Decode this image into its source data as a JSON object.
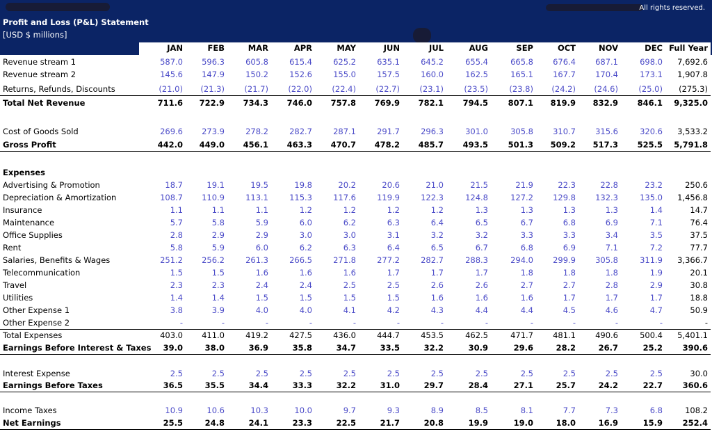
{
  "banner": {
    "copyright": "All rights reserved.",
    "title": "Profit and Loss (P&L) Statement",
    "subtitle": "[USD $ millions]"
  },
  "columns": [
    "JAN",
    "FEB",
    "MAR",
    "APR",
    "MAY",
    "JUN",
    "JUL",
    "AUG",
    "SEP",
    "OCT",
    "NOV",
    "DEC",
    "Full Year"
  ],
  "rows": [
    {
      "label": "Revenue stream 1",
      "values": [
        "587.0",
        "596.3",
        "605.8",
        "615.4",
        "625.2",
        "635.1",
        "645.2",
        "655.4",
        "665.8",
        "676.4",
        "687.1",
        "698.0"
      ],
      "total": "7,692.6"
    },
    {
      "label": "Revenue stream 2",
      "values": [
        "145.6",
        "147.9",
        "150.2",
        "152.6",
        "155.0",
        "157.5",
        "160.0",
        "162.5",
        "165.1",
        "167.7",
        "170.4",
        "173.1"
      ],
      "total": "1,907.8"
    },
    {
      "label": "Returns, Refunds, Discounts",
      "values": [
        "(21.0)",
        "(21.3)",
        "(21.7)",
        "(22.0)",
        "(22.4)",
        "(22.7)",
        "(23.1)",
        "(23.5)",
        "(23.8)",
        "(24.2)",
        "(24.6)",
        "(25.0)"
      ],
      "total": "(275.3)"
    },
    {
      "label": "Total Net Revenue",
      "values": [
        "711.6",
        "722.9",
        "734.3",
        "746.0",
        "757.8",
        "769.9",
        "782.1",
        "794.5",
        "807.1",
        "819.9",
        "832.9",
        "846.1"
      ],
      "total": "9,325.0",
      "style": "bold"
    },
    {
      "label": "Cost of Goods Sold",
      "values": [
        "269.6",
        "273.9",
        "278.2",
        "282.7",
        "287.1",
        "291.7",
        "296.3",
        "301.0",
        "305.8",
        "310.7",
        "315.6",
        "320.6"
      ],
      "total": "3,533.2"
    },
    {
      "label": "Gross Profit",
      "values": [
        "442.0",
        "449.0",
        "456.1",
        "463.3",
        "470.7",
        "478.2",
        "485.7",
        "493.5",
        "501.3",
        "509.2",
        "517.3",
        "525.5"
      ],
      "total": "5,791.8",
      "style": "bold"
    },
    {
      "label": "Expenses",
      "values": [],
      "total": "",
      "style": "header"
    },
    {
      "label": "Advertising & Promotion",
      "values": [
        "18.7",
        "19.1",
        "19.5",
        "19.8",
        "20.2",
        "20.6",
        "21.0",
        "21.5",
        "21.9",
        "22.3",
        "22.8",
        "23.2"
      ],
      "total": "250.6"
    },
    {
      "label": "Depreciation & Amortization",
      "values": [
        "108.7",
        "110.9",
        "113.1",
        "115.3",
        "117.6",
        "119.9",
        "122.3",
        "124.8",
        "127.2",
        "129.8",
        "132.3",
        "135.0"
      ],
      "total": "1,456.8"
    },
    {
      "label": "Insurance",
      "values": [
        "1.1",
        "1.1",
        "1.1",
        "1.2",
        "1.2",
        "1.2",
        "1.2",
        "1.3",
        "1.3",
        "1.3",
        "1.3",
        "1.4"
      ],
      "total": "14.7"
    },
    {
      "label": "Maintenance",
      "values": [
        "5.7",
        "5.8",
        "5.9",
        "6.0",
        "6.2",
        "6.3",
        "6.4",
        "6.5",
        "6.7",
        "6.8",
        "6.9",
        "7.1"
      ],
      "total": "76.4"
    },
    {
      "label": "Office Supplies",
      "values": [
        "2.8",
        "2.9",
        "2.9",
        "3.0",
        "3.0",
        "3.1",
        "3.2",
        "3.2",
        "3.3",
        "3.3",
        "3.4",
        "3.5"
      ],
      "total": "37.5"
    },
    {
      "label": "Rent",
      "values": [
        "5.8",
        "5.9",
        "6.0",
        "6.2",
        "6.3",
        "6.4",
        "6.5",
        "6.7",
        "6.8",
        "6.9",
        "7.1",
        "7.2"
      ],
      "total": "77.7"
    },
    {
      "label": "Salaries, Benefits & Wages",
      "values": [
        "251.2",
        "256.2",
        "261.3",
        "266.5",
        "271.8",
        "277.2",
        "282.7",
        "288.3",
        "294.0",
        "299.9",
        "305.8",
        "311.9"
      ],
      "total": "3,366.7"
    },
    {
      "label": "Telecommunication",
      "values": [
        "1.5",
        "1.5",
        "1.6",
        "1.6",
        "1.6",
        "1.7",
        "1.7",
        "1.7",
        "1.8",
        "1.8",
        "1.8",
        "1.9"
      ],
      "total": "20.1"
    },
    {
      "label": "Travel",
      "values": [
        "2.3",
        "2.3",
        "2.4",
        "2.4",
        "2.5",
        "2.5",
        "2.6",
        "2.6",
        "2.7",
        "2.7",
        "2.8",
        "2.9"
      ],
      "total": "30.8"
    },
    {
      "label": "Utilities",
      "values": [
        "1.4",
        "1.4",
        "1.5",
        "1.5",
        "1.5",
        "1.5",
        "1.6",
        "1.6",
        "1.6",
        "1.7",
        "1.7",
        "1.7"
      ],
      "total": "18.8"
    },
    {
      "label": "Other Expense 1",
      "values": [
        "3.8",
        "3.9",
        "4.0",
        "4.0",
        "4.1",
        "4.2",
        "4.3",
        "4.4",
        "4.4",
        "4.5",
        "4.6",
        "4.7"
      ],
      "total": "50.9"
    },
    {
      "label": "Other Expense 2",
      "values": [
        "-",
        "-",
        "-",
        "-",
        "-",
        "-",
        "-",
        "-",
        "-",
        "-",
        "-",
        "-"
      ],
      "total": "-"
    },
    {
      "label": "Total Expenses",
      "values": [
        "403.0",
        "411.0",
        "419.2",
        "427.5",
        "436.0",
        "444.7",
        "453.5",
        "462.5",
        "471.7",
        "481.1",
        "490.6",
        "500.4"
      ],
      "total": "5,401.1",
      "style": "black"
    },
    {
      "label": "Earnings Before Interest & Taxes",
      "values": [
        "39.0",
        "38.0",
        "36.9",
        "35.8",
        "34.7",
        "33.5",
        "32.2",
        "30.9",
        "29.6",
        "28.2",
        "26.7",
        "25.2"
      ],
      "total": "390.6",
      "style": "bold"
    },
    {
      "label": "Interest Expense",
      "values": [
        "2.5",
        "2.5",
        "2.5",
        "2.5",
        "2.5",
        "2.5",
        "2.5",
        "2.5",
        "2.5",
        "2.5",
        "2.5",
        "2.5"
      ],
      "total": "30.0"
    },
    {
      "label": "Earnings Before Taxes",
      "values": [
        "36.5",
        "35.5",
        "34.4",
        "33.3",
        "32.2",
        "31.0",
        "29.7",
        "28.4",
        "27.1",
        "25.7",
        "24.2",
        "22.7"
      ],
      "total": "360.6",
      "style": "bold"
    },
    {
      "label": "Income Taxes",
      "values": [
        "10.9",
        "10.6",
        "10.3",
        "10.0",
        "9.7",
        "9.3",
        "8.9",
        "8.5",
        "8.1",
        "7.7",
        "7.3",
        "6.8"
      ],
      "total": "108.2"
    },
    {
      "label": "Net Earnings",
      "values": [
        "25.5",
        "24.8",
        "24.1",
        "23.3",
        "22.5",
        "21.7",
        "20.8",
        "19.9",
        "19.0",
        "18.0",
        "16.9",
        "15.9"
      ],
      "total": "252.4",
      "style": "bold"
    }
  ]
}
